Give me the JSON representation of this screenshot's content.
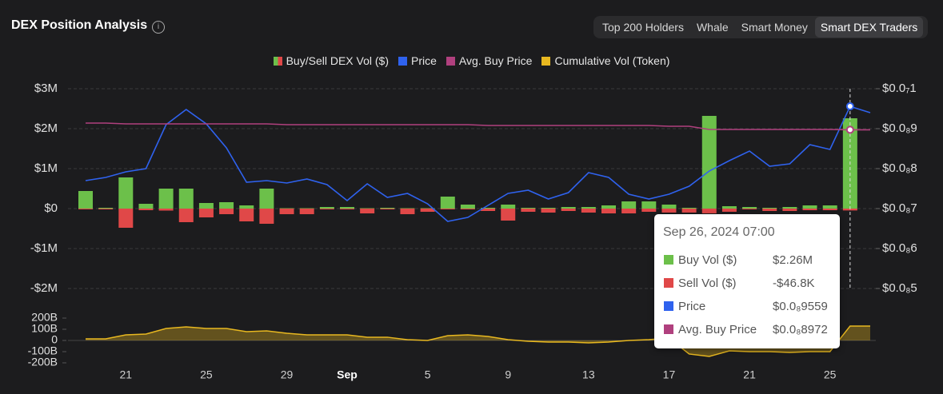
{
  "header": {
    "title": "DEX Position Analysis",
    "tabs": [
      "Top 200 Holders",
      "Whale",
      "Smart Money",
      "Smart DEX Traders"
    ],
    "active_tab": 3
  },
  "chart_data": {
    "type": "combo",
    "volume_legend": "Buy/Sell DEX Vol ($)",
    "categories": [
      null,
      null,
      "21",
      null,
      null,
      null,
      "25",
      null,
      null,
      null,
      "29",
      null,
      null,
      "Sep",
      null,
      null,
      null,
      "5",
      null,
      null,
      null,
      "9",
      null,
      null,
      null,
      "13",
      null,
      null,
      null,
      "17",
      null,
      null,
      null,
      "21",
      null,
      null,
      null,
      "25",
      null,
      null
    ],
    "ylim": [
      -2000000,
      3000000
    ],
    "yticks": [
      {
        "value": 3000000,
        "label": "$3M"
      },
      {
        "value": 2000000,
        "label": "$2M"
      },
      {
        "value": 1000000,
        "label": "$1M"
      },
      {
        "value": 0,
        "label": "$0"
      },
      {
        "value": -1000000,
        "label": "-$1M"
      },
      {
        "value": -2000000,
        "label": "-$2M"
      }
    ],
    "y2lim": [
      5e-09,
      1e-08
    ],
    "y2ticks": [
      {
        "value": 1e-08,
        "label": "$0.0₇1"
      },
      {
        "value": 9e-09,
        "label": "$0.0₈9"
      },
      {
        "value": 8e-09,
        "label": "$0.0₈8"
      },
      {
        "value": 7e-09,
        "label": "$0.0₈7"
      },
      {
        "value": 6e-09,
        "label": "$0.0₈6"
      },
      {
        "value": 5e-09,
        "label": "$0.0₈5"
      }
    ],
    "y3lim": [
      -200000000000,
      200000000000
    ],
    "y3ticks": [
      {
        "value": 200000000000,
        "label": "200B"
      },
      {
        "value": 100000000000,
        "label": "100B"
      },
      0,
      {
        "value": -100000000000,
        "label": "-100B"
      },
      {
        "value": -200000000000,
        "label": "-200B"
      }
    ],
    "grid": true,
    "series": [
      {
        "name": "Buy Vol ($)",
        "type": "bar",
        "color": "#6cc04a",
        "values": [
          440000,
          20000,
          780000,
          120000,
          500000,
          500000,
          140000,
          160000,
          80000,
          500000,
          10000,
          10000,
          40000,
          40000,
          10000,
          20000,
          10000,
          10000,
          300000,
          100000,
          20000,
          100000,
          20000,
          20000,
          40000,
          40000,
          80000,
          180000,
          180000,
          100000,
          20000,
          2320000,
          60000,
          40000,
          20000,
          40000,
          80000,
          80000,
          2260000,
          null
        ]
      },
      {
        "name": "Sell Vol ($)",
        "type": "bar",
        "color": "#e04848",
        "values": [
          -20000,
          -20000,
          -480000,
          -40000,
          -50000,
          -340000,
          -220000,
          -140000,
          -320000,
          -380000,
          -140000,
          -140000,
          -20000,
          -20000,
          -120000,
          -20000,
          -140000,
          -80000,
          -20000,
          -20000,
          -60000,
          -300000,
          -80000,
          -100000,
          -60000,
          -100000,
          -120000,
          -120000,
          -80000,
          -100000,
          -100000,
          -120000,
          -80000,
          -20000,
          -60000,
          -60000,
          -40000,
          -40000,
          -46800,
          null
        ]
      },
      {
        "name": "Price",
        "type": "line",
        "axis": "y2",
        "color": "#2f62ee",
        "values": [
          7.7e-09,
          7.78e-09,
          7.92e-09,
          8e-09,
          9.1e-09,
          9.48e-09,
          9.12e-09,
          8.52e-09,
          7.66e-09,
          7.7e-09,
          7.64e-09,
          7.74e-09,
          7.6e-09,
          7.2e-09,
          7.62e-09,
          7.28e-09,
          7.38e-09,
          7.12e-09,
          6.68e-09,
          6.78e-09,
          7.08e-09,
          7.38e-09,
          7.46e-09,
          7.24e-09,
          7.4e-09,
          7.9e-09,
          7.78e-09,
          7.36e-09,
          7.24e-09,
          7.36e-09,
          7.56e-09,
          7.94e-09,
          8.2e-09,
          8.44e-09,
          8.06e-09,
          8.12e-09,
          8.6e-09,
          8.48e-09,
          9.559e-09,
          9.4e-09
        ]
      },
      {
        "name": "Avg. Buy Price",
        "type": "line",
        "axis": "y2",
        "color": "#b0407e",
        "values": [
          9.14e-09,
          9.14e-09,
          9.12e-09,
          9.12e-09,
          9.12e-09,
          9.12e-09,
          9.12e-09,
          9.12e-09,
          9.12e-09,
          9.12e-09,
          9.1e-09,
          9.1e-09,
          9.1e-09,
          9.1e-09,
          9.1e-09,
          9.1e-09,
          9.1e-09,
          9.1e-09,
          9.1e-09,
          9.1e-09,
          9.08e-09,
          9.08e-09,
          9.08e-09,
          9.08e-09,
          9.08e-09,
          9.08e-09,
          9.08e-09,
          9.08e-09,
          9.08e-09,
          9.06e-09,
          9.06e-09,
          8.98e-09,
          8.98e-09,
          8.98e-09,
          8.98e-09,
          8.98e-09,
          8.98e-09,
          8.98e-09,
          8.972e-09,
          8.972e-09
        ]
      },
      {
        "name": "Cumulative Vol (Token)",
        "type": "area",
        "axis": "y3",
        "color": "#e8b820",
        "values": [
          14000000000,
          14000000000,
          50000000000,
          57000000000,
          107000000000,
          121000000000,
          107000000000,
          107000000000,
          79000000000,
          86000000000,
          64000000000,
          50000000000,
          50000000000,
          50000000000,
          29000000000,
          29000000000,
          7000000000,
          0,
          43000000000,
          50000000000,
          36000000000,
          7000000000,
          -7000000000,
          -14000000000,
          -14000000000,
          -21000000000,
          -14000000000,
          0,
          7000000000,
          21000000000,
          -121000000000,
          -143000000000,
          -93000000000,
          -100000000000,
          -100000000000,
          -107000000000,
          -100000000000,
          -100000000000,
          129000000000,
          129000000000
        ]
      }
    ],
    "tooltip": {
      "title": "Sep 26, 2024 07:00",
      "index": 38,
      "value_labels": [
        "$2.26M",
        "-$46.8K",
        "$0.0₈9559",
        "$0.0₈8972"
      ]
    }
  }
}
